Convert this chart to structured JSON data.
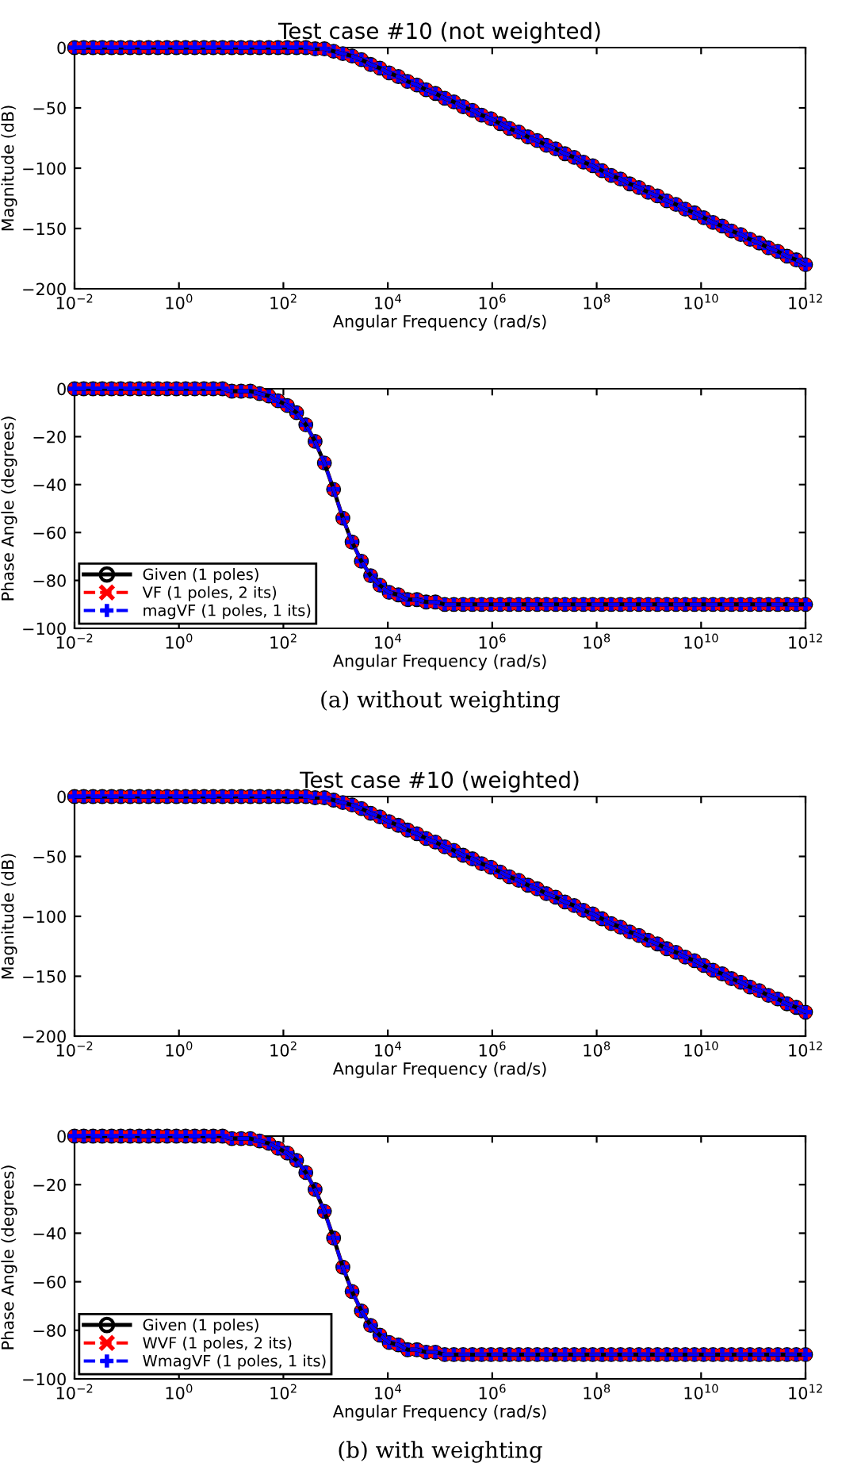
{
  "chart_data": [
    {
      "type": "line",
      "title": "Test case #10 (not weighted)",
      "xlabel": "Angular Frequency (rad/s)",
      "ylabel": "Magnitude (dB)",
      "log": "x",
      "xlim": [
        0.01,
        1000000000000.0
      ],
      "ylim": [
        -200,
        0
      ],
      "xticks": [
        {
          "value": 0.01,
          "label": "10$^{−2}$"
        },
        {
          "value": 1,
          "label": "10$^{0}$"
        },
        {
          "value": 100,
          "label": "10$^{2}$"
        },
        {
          "value": 10000.0,
          "label": "10$^{4}$"
        },
        {
          "value": 1000000.0,
          "label": "10$^{6}$"
        },
        {
          "value": 100000000.0,
          "label": "10$^{8}$"
        },
        {
          "value": 10000000000.0,
          "label": "10$^{10}$"
        },
        {
          "value": 1000000000000.0,
          "label": "10$^{12}$"
        }
      ],
      "yticks": [
        -200,
        -150,
        -100,
        -50,
        0
      ],
      "grid": false,
      "legend": false,
      "x": [
        0.01,
        0.015,
        0.0226,
        0.034,
        0.0512,
        0.0769,
        0.116,
        0.174,
        0.262,
        0.394,
        0.592,
        0.89,
        1.34,
        2.01,
        3.03,
        4.55,
        6.84,
        10.3,
        15.5,
        23.3,
        35.0,
        52.7,
        79.2,
        119,
        179,
        269,
        405,
        610,
        916,
        1377,
        2070,
        3119,
        4688,
        7047,
        10600.0,
        15900.0,
        24000.0,
        36100.0,
        54200.0,
        81500.0,
        123000.0,
        184000.0,
        277000.0,
        417000.0,
        627000.0,
        944000.0,
        1420000.0,
        2130000.0,
        3210000.0,
        4830000.0,
        7260000.0,
        10900000.0,
        16400000.0,
        24700000.0,
        37100000.0,
        55800000.0,
        84000000.0,
        126000000.0,
        190000000.0,
        286000000.0,
        430000000.0,
        646000000.0,
        971000000.0,
        1460000000.0,
        2200000000.0,
        3300000000.0,
        4970000000.0,
        7470000000.0,
        11200000000.0,
        16900000000.0,
        25400000000.0,
        38200000000.0,
        57400000000.0,
        86500000000.0,
        130000000000.0,
        195000000000.0,
        294000000000.0,
        442000000000.0,
        665000000000.0,
        1000000000000.0
      ],
      "series": [
        {
          "color": "#000000",
          "marker": "circle",
          "line_style": "solid",
          "values": [
            0,
            0,
            0,
            0,
            0,
            0,
            0,
            0,
            0,
            0,
            0,
            0,
            0,
            0,
            0,
            0,
            0,
            0,
            0,
            0,
            0,
            0,
            0,
            0,
            0,
            0,
            -1,
            -1,
            -3,
            -5,
            -7,
            -10,
            -14,
            -17,
            -21,
            -24,
            -28,
            -31,
            -35,
            -38,
            -42,
            -45,
            -49,
            -52,
            -56,
            -59,
            -63,
            -67,
            -70,
            -74,
            -77,
            -81,
            -84,
            -88,
            -91,
            -95,
            -98,
            -102,
            -106,
            -109,
            -113,
            -116,
            -120,
            -123,
            -127,
            -130,
            -134,
            -137,
            -141,
            -145,
            -148,
            -152,
            -155,
            -159,
            -162,
            -166,
            -169,
            -173,
            -176,
            -180
          ]
        },
        {
          "color": "#ff0000",
          "marker": "cross",
          "line_style": "dashed",
          "values": [
            0,
            0,
            0,
            0,
            0,
            0,
            0,
            0,
            0,
            0,
            0,
            0,
            0,
            0,
            0,
            0,
            0,
            0,
            0,
            0,
            0,
            0,
            0,
            0,
            0,
            0,
            -1,
            -1,
            -3,
            -5,
            -7,
            -10,
            -14,
            -17,
            -21,
            -24,
            -28,
            -31,
            -35,
            -38,
            -42,
            -45,
            -49,
            -52,
            -56,
            -59,
            -63,
            -67,
            -70,
            -74,
            -77,
            -81,
            -84,
            -88,
            -91,
            -95,
            -98,
            -102,
            -106,
            -109,
            -113,
            -116,
            -120,
            -123,
            -127,
            -130,
            -134,
            -137,
            -141,
            -145,
            -148,
            -152,
            -155,
            -159,
            -162,
            -166,
            -169,
            -173,
            -176,
            -180
          ]
        },
        {
          "color": "#0000ff",
          "marker": "plus",
          "line_style": "dashed",
          "values": [
            0,
            0,
            0,
            0,
            0,
            0,
            0,
            0,
            0,
            0,
            0,
            0,
            0,
            0,
            0,
            0,
            0,
            0,
            0,
            0,
            0,
            0,
            0,
            0,
            0,
            0,
            -1,
            -1,
            -3,
            -5,
            -7,
            -10,
            -14,
            -17,
            -21,
            -24,
            -28,
            -31,
            -35,
            -38,
            -42,
            -45,
            -49,
            -52,
            -56,
            -59,
            -63,
            -67,
            -70,
            -74,
            -77,
            -81,
            -84,
            -88,
            -91,
            -95,
            -98,
            -102,
            -106,
            -109,
            -113,
            -116,
            -120,
            -123,
            -127,
            -130,
            -134,
            -137,
            -141,
            -145,
            -148,
            -152,
            -155,
            -159,
            -162,
            -166,
            -169,
            -173,
            -176,
            -180
          ]
        }
      ]
    },
    {
      "type": "line",
      "xlabel": "Angular Frequency (rad/s)",
      "ylabel": "Phase Angle (degrees)",
      "log": "x",
      "xlim": [
        0.01,
        1000000000000.0
      ],
      "ylim": [
        -100,
        0
      ],
      "xticks": [
        {
          "value": 0.01,
          "label": "10$^{−2}$"
        },
        {
          "value": 1,
          "label": "10$^{0}$"
        },
        {
          "value": 100,
          "label": "10$^{2}$"
        },
        {
          "value": 10000.0,
          "label": "10$^{4}$"
        },
        {
          "value": 1000000.0,
          "label": "10$^{6}$"
        },
        {
          "value": 100000000.0,
          "label": "10$^{8}$"
        },
        {
          "value": 10000000000.0,
          "label": "10$^{10}$"
        },
        {
          "value": 1000000000000.0,
          "label": "10$^{12}$"
        }
      ],
      "yticks": [
        -100,
        -80,
        -60,
        -40,
        -20,
        0
      ],
      "grid": false,
      "legend": "bottom left",
      "annotations": [
        "(a) without weighting"
      ],
      "x": [
        0.01,
        0.015,
        0.0226,
        0.034,
        0.0512,
        0.0769,
        0.116,
        0.174,
        0.262,
        0.394,
        0.592,
        0.89,
        1.34,
        2.01,
        3.03,
        4.55,
        6.84,
        10.3,
        15.5,
        23.3,
        35.0,
        52.7,
        79.2,
        119,
        179,
        269,
        405,
        610,
        916,
        1377,
        2070,
        3119,
        4688,
        7047,
        10600.0,
        15900.0,
        24000.0,
        36100.0,
        54200.0,
        81500.0,
        123000.0,
        184000.0,
        277000.0,
        417000.0,
        627000.0,
        944000.0,
        1420000.0,
        2130000.0,
        3210000.0,
        4830000.0,
        7260000.0,
        10900000.0,
        16400000.0,
        24700000.0,
        37100000.0,
        55800000.0,
        84000000.0,
        126000000.0,
        190000000.0,
        286000000.0,
        430000000.0,
        646000000.0,
        971000000.0,
        1460000000.0,
        2200000000.0,
        3300000000.0,
        4970000000.0,
        7470000000.0,
        11200000000.0,
        16900000000.0,
        25400000000.0,
        38200000000.0,
        57400000000.0,
        86500000000.0,
        130000000000.0,
        195000000000.0,
        294000000000.0,
        442000000000.0,
        665000000000.0,
        1000000000000.0
      ],
      "series": [
        {
          "name": "Given (1 poles)",
          "color": "#000000",
          "marker": "circle",
          "line_style": "solid",
          "values": [
            0,
            0,
            0,
            0,
            0,
            0,
            0,
            0,
            0,
            0,
            0,
            0,
            0,
            0,
            0,
            0,
            0,
            -1,
            -1,
            -1,
            -2,
            -3,
            -5,
            -7,
            -10,
            -15,
            -22,
            -31,
            -42,
            -54,
            -64,
            -72,
            -78,
            -82,
            -85,
            -86,
            -88,
            -88,
            -89,
            -89,
            -90,
            -90,
            -90,
            -90,
            -90,
            -90,
            -90,
            -90,
            -90,
            -90,
            -90,
            -90,
            -90,
            -90,
            -90,
            -90,
            -90,
            -90,
            -90,
            -90,
            -90,
            -90,
            -90,
            -90,
            -90,
            -90,
            -90,
            -90,
            -90,
            -90,
            -90,
            -90,
            -90,
            -90,
            -90,
            -90,
            -90,
            -90,
            -90,
            -90
          ]
        },
        {
          "name": "VF (1 poles, 2 its)",
          "color": "#ff0000",
          "marker": "cross",
          "line_style": "dashed",
          "values": [
            0,
            0,
            0,
            0,
            0,
            0,
            0,
            0,
            0,
            0,
            0,
            0,
            0,
            0,
            0,
            0,
            0,
            -1,
            -1,
            -1,
            -2,
            -3,
            -5,
            -7,
            -10,
            -15,
            -22,
            -31,
            -42,
            -54,
            -64,
            -72,
            -78,
            -82,
            -85,
            -86,
            -88,
            -88,
            -89,
            -89,
            -90,
            -90,
            -90,
            -90,
            -90,
            -90,
            -90,
            -90,
            -90,
            -90,
            -90,
            -90,
            -90,
            -90,
            -90,
            -90,
            -90,
            -90,
            -90,
            -90,
            -90,
            -90,
            -90,
            -90,
            -90,
            -90,
            -90,
            -90,
            -90,
            -90,
            -90,
            -90,
            -90,
            -90,
            -90,
            -90,
            -90,
            -90,
            -90,
            -90
          ]
        },
        {
          "name": "magVF (1 poles, 1 its)",
          "color": "#0000ff",
          "marker": "plus",
          "line_style": "dashed",
          "values": [
            0,
            0,
            0,
            0,
            0,
            0,
            0,
            0,
            0,
            0,
            0,
            0,
            0,
            0,
            0,
            0,
            0,
            -1,
            -1,
            -1,
            -2,
            -3,
            -5,
            -7,
            -10,
            -15,
            -22,
            -31,
            -42,
            -54,
            -64,
            -72,
            -78,
            -82,
            -85,
            -86,
            -88,
            -88,
            -89,
            -89,
            -90,
            -90,
            -90,
            -90,
            -90,
            -90,
            -90,
            -90,
            -90,
            -90,
            -90,
            -90,
            -90,
            -90,
            -90,
            -90,
            -90,
            -90,
            -90,
            -90,
            -90,
            -90,
            -90,
            -90,
            -90,
            -90,
            -90,
            -90,
            -90,
            -90,
            -90,
            -90,
            -90,
            -90,
            -90,
            -90,
            -90,
            -90,
            -90,
            -90
          ]
        }
      ]
    },
    {
      "type": "line",
      "title": "Test case #10 (weighted)",
      "xlabel": "Angular Frequency (rad/s)",
      "ylabel": "Magnitude (dB)",
      "log": "x",
      "xlim": [
        0.01,
        1000000000000.0
      ],
      "ylim": [
        -200,
        0
      ],
      "xticks": [
        {
          "value": 0.01,
          "label": "10$^{−2}$"
        },
        {
          "value": 1,
          "label": "10$^{0}$"
        },
        {
          "value": 100,
          "label": "10$^{2}$"
        },
        {
          "value": 10000.0,
          "label": "10$^{4}$"
        },
        {
          "value": 1000000.0,
          "label": "10$^{6}$"
        },
        {
          "value": 100000000.0,
          "label": "10$^{8}$"
        },
        {
          "value": 10000000000.0,
          "label": "10$^{10}$"
        },
        {
          "value": 1000000000000.0,
          "label": "10$^{12}$"
        }
      ],
      "yticks": [
        -200,
        -150,
        -100,
        -50,
        0
      ],
      "grid": false,
      "legend": false,
      "x": [
        0.01,
        0.015,
        0.0226,
        0.034,
        0.0512,
        0.0769,
        0.116,
        0.174,
        0.262,
        0.394,
        0.592,
        0.89,
        1.34,
        2.01,
        3.03,
        4.55,
        6.84,
        10.3,
        15.5,
        23.3,
        35.0,
        52.7,
        79.2,
        119,
        179,
        269,
        405,
        610,
        916,
        1377,
        2070,
        3119,
        4688,
        7047,
        10600.0,
        15900.0,
        24000.0,
        36100.0,
        54200.0,
        81500.0,
        123000.0,
        184000.0,
        277000.0,
        417000.0,
        627000.0,
        944000.0,
        1420000.0,
        2130000.0,
        3210000.0,
        4830000.0,
        7260000.0,
        10900000.0,
        16400000.0,
        24700000.0,
        37100000.0,
        55800000.0,
        84000000.0,
        126000000.0,
        190000000.0,
        286000000.0,
        430000000.0,
        646000000.0,
        971000000.0,
        1460000000.0,
        2200000000.0,
        3300000000.0,
        4970000000.0,
        7470000000.0,
        11200000000.0,
        16900000000.0,
        25400000000.0,
        38200000000.0,
        57400000000.0,
        86500000000.0,
        130000000000.0,
        195000000000.0,
        294000000000.0,
        442000000000.0,
        665000000000.0,
        1000000000000.0
      ],
      "series": [
        {
          "color": "#000000",
          "marker": "circle",
          "line_style": "solid",
          "values": [
            0,
            0,
            0,
            0,
            0,
            0,
            0,
            0,
            0,
            0,
            0,
            0,
            0,
            0,
            0,
            0,
            0,
            0,
            0,
            0,
            0,
            0,
            0,
            0,
            0,
            0,
            -1,
            -1,
            -3,
            -5,
            -7,
            -10,
            -14,
            -17,
            -21,
            -24,
            -28,
            -31,
            -35,
            -38,
            -42,
            -45,
            -49,
            -52,
            -56,
            -59,
            -63,
            -67,
            -70,
            -74,
            -77,
            -81,
            -84,
            -88,
            -91,
            -95,
            -98,
            -102,
            -106,
            -109,
            -113,
            -116,
            -120,
            -123,
            -127,
            -130,
            -134,
            -137,
            -141,
            -145,
            -148,
            -152,
            -155,
            -159,
            -162,
            -166,
            -169,
            -173,
            -176,
            -180
          ]
        },
        {
          "color": "#ff0000",
          "marker": "cross",
          "line_style": "dashed",
          "values": [
            0,
            0,
            0,
            0,
            0,
            0,
            0,
            0,
            0,
            0,
            0,
            0,
            0,
            0,
            0,
            0,
            0,
            0,
            0,
            0,
            0,
            0,
            0,
            0,
            0,
            0,
            -1,
            -1,
            -3,
            -5,
            -7,
            -10,
            -14,
            -17,
            -21,
            -24,
            -28,
            -31,
            -35,
            -38,
            -42,
            -45,
            -49,
            -52,
            -56,
            -59,
            -63,
            -67,
            -70,
            -74,
            -77,
            -81,
            -84,
            -88,
            -91,
            -95,
            -98,
            -102,
            -106,
            -109,
            -113,
            -116,
            -120,
            -123,
            -127,
            -130,
            -134,
            -137,
            -141,
            -145,
            -148,
            -152,
            -155,
            -159,
            -162,
            -166,
            -169,
            -173,
            -176,
            -180
          ]
        },
        {
          "color": "#0000ff",
          "marker": "plus",
          "line_style": "dashed",
          "values": [
            0,
            0,
            0,
            0,
            0,
            0,
            0,
            0,
            0,
            0,
            0,
            0,
            0,
            0,
            0,
            0,
            0,
            0,
            0,
            0,
            0,
            0,
            0,
            0,
            0,
            0,
            -1,
            -1,
            -3,
            -5,
            -7,
            -10,
            -14,
            -17,
            -21,
            -24,
            -28,
            -31,
            -35,
            -38,
            -42,
            -45,
            -49,
            -52,
            -56,
            -59,
            -63,
            -67,
            -70,
            -74,
            -77,
            -81,
            -84,
            -88,
            -91,
            -95,
            -98,
            -102,
            -106,
            -109,
            -113,
            -116,
            -120,
            -123,
            -127,
            -130,
            -134,
            -137,
            -141,
            -145,
            -148,
            -152,
            -155,
            -159,
            -162,
            -166,
            -169,
            -173,
            -176,
            -180
          ]
        }
      ]
    },
    {
      "type": "line",
      "xlabel": "Angular Frequency (rad/s)",
      "ylabel": "Phase Angle (degrees)",
      "log": "x",
      "xlim": [
        0.01,
        1000000000000.0
      ],
      "ylim": [
        -100,
        0
      ],
      "xticks": [
        {
          "value": 0.01,
          "label": "10$^{−2}$"
        },
        {
          "value": 1,
          "label": "10$^{0}$"
        },
        {
          "value": 100,
          "label": "10$^{2}$"
        },
        {
          "value": 10000.0,
          "label": "10$^{4}$"
        },
        {
          "value": 1000000.0,
          "label": "10$^{6}$"
        },
        {
          "value": 100000000.0,
          "label": "10$^{8}$"
        },
        {
          "value": 10000000000.0,
          "label": "10$^{10}$"
        },
        {
          "value": 1000000000000.0,
          "label": "10$^{12}$"
        }
      ],
      "yticks": [
        -100,
        -80,
        -60,
        -40,
        -20,
        0
      ],
      "grid": false,
      "legend": "bottom left",
      "annotations": [
        "(b) with weighting"
      ],
      "x": [
        0.01,
        0.015,
        0.0226,
        0.034,
        0.0512,
        0.0769,
        0.116,
        0.174,
        0.262,
        0.394,
        0.592,
        0.89,
        1.34,
        2.01,
        3.03,
        4.55,
        6.84,
        10.3,
        15.5,
        23.3,
        35.0,
        52.7,
        79.2,
        119,
        179,
        269,
        405,
        610,
        916,
        1377,
        2070,
        3119,
        4688,
        7047,
        10600.0,
        15900.0,
        24000.0,
        36100.0,
        54200.0,
        81500.0,
        123000.0,
        184000.0,
        277000.0,
        417000.0,
        627000.0,
        944000.0,
        1420000.0,
        2130000.0,
        3210000.0,
        4830000.0,
        7260000.0,
        10900000.0,
        16400000.0,
        24700000.0,
        37100000.0,
        55800000.0,
        84000000.0,
        126000000.0,
        190000000.0,
        286000000.0,
        430000000.0,
        646000000.0,
        971000000.0,
        1460000000.0,
        2200000000.0,
        3300000000.0,
        4970000000.0,
        7470000000.0,
        11200000000.0,
        16900000000.0,
        25400000000.0,
        38200000000.0,
        57400000000.0,
        86500000000.0,
        130000000000.0,
        195000000000.0,
        294000000000.0,
        442000000000.0,
        665000000000.0,
        1000000000000.0
      ],
      "series": [
        {
          "name": "Given (1 poles)",
          "color": "#000000",
          "marker": "circle",
          "line_style": "solid",
          "values": [
            0,
            0,
            0,
            0,
            0,
            0,
            0,
            0,
            0,
            0,
            0,
            0,
            0,
            0,
            0,
            0,
            0,
            -1,
            -1,
            -1,
            -2,
            -3,
            -5,
            -7,
            -10,
            -15,
            -22,
            -31,
            -42,
            -54,
            -64,
            -72,
            -78,
            -82,
            -85,
            -86,
            -88,
            -88,
            -89,
            -89,
            -90,
            -90,
            -90,
            -90,
            -90,
            -90,
            -90,
            -90,
            -90,
            -90,
            -90,
            -90,
            -90,
            -90,
            -90,
            -90,
            -90,
            -90,
            -90,
            -90,
            -90,
            -90,
            -90,
            -90,
            -90,
            -90,
            -90,
            -90,
            -90,
            -90,
            -90,
            -90,
            -90,
            -90,
            -90,
            -90,
            -90,
            -90,
            -90,
            -90
          ]
        },
        {
          "name": "WVF (1 poles, 2 its)",
          "color": "#ff0000",
          "marker": "cross",
          "line_style": "dashed",
          "values": [
            0,
            0,
            0,
            0,
            0,
            0,
            0,
            0,
            0,
            0,
            0,
            0,
            0,
            0,
            0,
            0,
            0,
            -1,
            -1,
            -1,
            -2,
            -3,
            -5,
            -7,
            -10,
            -15,
            -22,
            -31,
            -42,
            -54,
            -64,
            -72,
            -78,
            -82,
            -85,
            -86,
            -88,
            -88,
            -89,
            -89,
            -90,
            -90,
            -90,
            -90,
            -90,
            -90,
            -90,
            -90,
            -90,
            -90,
            -90,
            -90,
            -90,
            -90,
            -90,
            -90,
            -90,
            -90,
            -90,
            -90,
            -90,
            -90,
            -90,
            -90,
            -90,
            -90,
            -90,
            -90,
            -90,
            -90,
            -90,
            -90,
            -90,
            -90,
            -90,
            -90,
            -90,
            -90,
            -90,
            -90
          ]
        },
        {
          "name": "WmagVF (1 poles, 1 its)",
          "color": "#0000ff",
          "marker": "plus",
          "line_style": "dashed",
          "values": [
            0,
            0,
            0,
            0,
            0,
            0,
            0,
            0,
            0,
            0,
            0,
            0,
            0,
            0,
            0,
            0,
            0,
            -1,
            -1,
            -1,
            -2,
            -3,
            -5,
            -7,
            -10,
            -15,
            -22,
            -31,
            -42,
            -54,
            -64,
            -72,
            -78,
            -82,
            -85,
            -86,
            -88,
            -88,
            -89,
            -89,
            -90,
            -90,
            -90,
            -90,
            -90,
            -90,
            -90,
            -90,
            -90,
            -90,
            -90,
            -90,
            -90,
            -90,
            -90,
            -90,
            -90,
            -90,
            -90,
            -90,
            -90,
            -90,
            -90,
            -90,
            -90,
            -90,
            -90,
            -90,
            -90,
            -90,
            -90,
            -90,
            -90,
            -90,
            -90,
            -90,
            -90,
            -90,
            -90,
            -90
          ]
        }
      ]
    }
  ]
}
